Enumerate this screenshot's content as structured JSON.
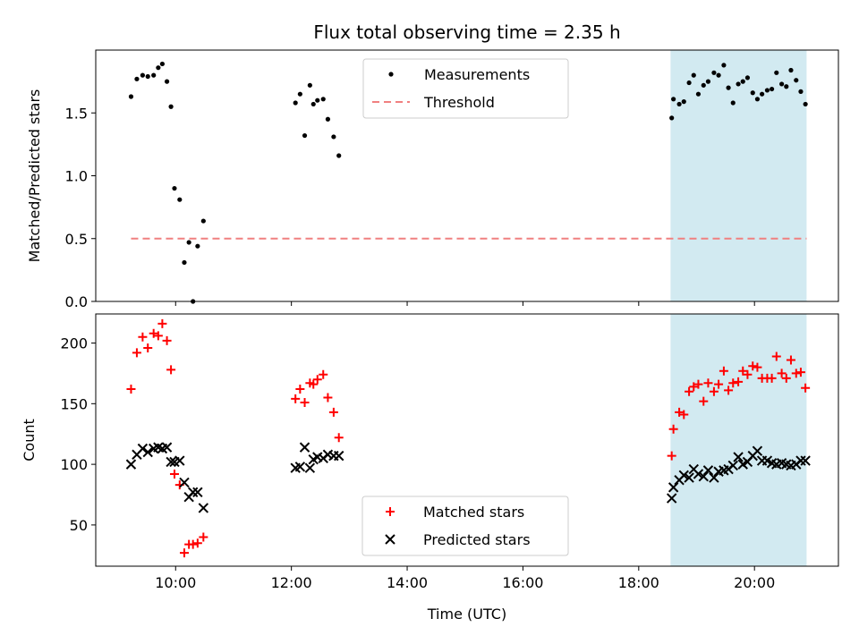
{
  "chart_data": {
    "title": "Flux total observing time = 2.35 h",
    "xlabel": "Time (UTC)",
    "x_ticks": [
      "10:00",
      "12:00",
      "14:00",
      "16:00",
      "18:00",
      "20:00"
    ],
    "x_tick_hours": [
      10,
      12,
      14,
      16,
      18,
      20
    ],
    "xlim_hours": [
      8.62,
      21.45
    ],
    "highlight_span_hours": [
      18.55,
      20.9
    ],
    "highlight_color": "#add8e6",
    "panels": [
      {
        "type": "scatter",
        "ylabel": "Matched/Predicted stars",
        "ylim": [
          0,
          2.0
        ],
        "y_ticks": [
          "0.0",
          "0.5",
          "1.0",
          "1.5"
        ],
        "y_tick_values": [
          0,
          0.5,
          1.0,
          1.5
        ],
        "legend_position": "top-center",
        "series": [
          {
            "name": "Measurements",
            "marker": "dot",
            "color": "#000000",
            "x_hours": [
              9.23,
              9.33,
              9.43,
              9.52,
              9.62,
              9.7,
              9.77,
              9.85,
              9.92,
              9.98,
              10.07,
              10.15,
              10.23,
              10.3,
              10.38,
              10.48,
              12.07,
              12.15,
              12.23,
              12.32,
              12.38,
              12.45,
              12.55,
              12.63,
              12.73,
              12.82,
              18.57,
              18.6,
              18.7,
              18.78,
              18.87,
              18.95,
              19.03,
              19.12,
              19.2,
              19.3,
              19.38,
              19.47,
              19.55,
              19.63,
              19.72,
              19.8,
              19.88,
              19.97,
              20.05,
              20.13,
              20.22,
              20.3,
              20.38,
              20.47,
              20.55,
              20.63,
              20.72,
              20.8,
              20.88
            ],
            "y": [
              1.63,
              1.77,
              1.8,
              1.79,
              1.8,
              1.86,
              1.89,
              1.75,
              1.55,
              0.9,
              0.81,
              0.31,
              0.47,
              0.0,
              0.44,
              0.64,
              1.58,
              1.65,
              1.32,
              1.72,
              1.57,
              1.6,
              1.61,
              1.45,
              1.31,
              1.16,
              1.46,
              1.61,
              1.57,
              1.59,
              1.74,
              1.8,
              1.65,
              1.72,
              1.75,
              1.82,
              1.8,
              1.88,
              1.7,
              1.58,
              1.73,
              1.75,
              1.78,
              1.66,
              1.61,
              1.65,
              1.68,
              1.69,
              1.82,
              1.73,
              1.71,
              1.84,
              1.76,
              1.67,
              1.57
            ]
          },
          {
            "name": "Threshold",
            "marker": "dashed-line",
            "color": "#f08080",
            "x_hours": [
              9.23,
              20.9
            ],
            "y": [
              0.5,
              0.5
            ]
          }
        ]
      },
      {
        "type": "scatter",
        "ylabel": "Count",
        "ylim": [
          16,
          224
        ],
        "y_ticks": [
          "50",
          "100",
          "150",
          "200"
        ],
        "y_tick_values": [
          50,
          100,
          150,
          200
        ],
        "legend_position": "bottom-center",
        "series": [
          {
            "name": "Matched stars",
            "marker": "plus",
            "color": "#ff0000",
            "x_hours": [
              9.23,
              9.33,
              9.43,
              9.52,
              9.62,
              9.7,
              9.77,
              9.85,
              9.92,
              9.98,
              10.07,
              10.15,
              10.23,
              10.3,
              10.38,
              10.48,
              12.07,
              12.15,
              12.23,
              12.32,
              12.38,
              12.45,
              12.55,
              12.63,
              12.73,
              12.82,
              18.57,
              18.6,
              18.7,
              18.78,
              18.87,
              18.95,
              19.03,
              19.12,
              19.2,
              19.3,
              19.38,
              19.47,
              19.55,
              19.63,
              19.72,
              19.8,
              19.88,
              19.97,
              20.05,
              20.13,
              20.22,
              20.3,
              20.38,
              20.47,
              20.55,
              20.63,
              20.72,
              20.8,
              20.88
            ],
            "y": [
              162,
              192,
              205,
              196,
              208,
              206,
              216,
              202,
              178,
              92,
              83,
              27,
              34,
              34,
              35,
              40,
              154,
              162,
              151,
              167,
              166,
              170,
              174,
              155,
              143,
              122,
              107,
              129,
              143,
              141,
              160,
              164,
              166,
              152,
              167,
              160,
              166,
              177,
              161,
              167,
              168,
              177,
              174,
              181,
              180,
              171,
              171,
              171,
              189,
              175,
              171,
              186,
              175,
              176,
              163
            ]
          },
          {
            "name": "Predicted stars",
            "marker": "x",
            "color": "#000000",
            "x_hours": [
              9.23,
              9.33,
              9.43,
              9.52,
              9.62,
              9.7,
              9.77,
              9.85,
              9.92,
              9.98,
              10.07,
              10.15,
              10.23,
              10.3,
              10.38,
              10.48,
              12.07,
              12.15,
              12.23,
              12.32,
              12.38,
              12.45,
              12.55,
              12.63,
              12.73,
              12.82,
              18.57,
              18.6,
              18.7,
              18.78,
              18.87,
              18.95,
              19.03,
              19.12,
              19.2,
              19.3,
              19.38,
              19.47,
              19.55,
              19.63,
              19.72,
              19.8,
              19.88,
              19.97,
              20.05,
              20.13,
              20.22,
              20.3,
              20.38,
              20.47,
              20.55,
              20.63,
              20.72,
              20.8,
              20.88
            ],
            "y": [
              100,
              108,
              113,
              110,
              113,
              114,
              113,
              114,
              102,
              102,
              103,
              85,
              73,
              77,
              77,
              64,
              97,
              98,
              114,
              97,
              104,
              106,
              105,
              108,
              107,
              107,
              72,
              81,
              87,
              91,
              89,
              96,
              92,
              90,
              95,
              89,
              94,
              95,
              96,
              99,
              106,
              100,
              102,
              107,
              111,
              103,
              103,
              101,
              100,
              101,
              100,
              99,
              100,
              103,
              103
            ]
          }
        ]
      }
    ]
  }
}
